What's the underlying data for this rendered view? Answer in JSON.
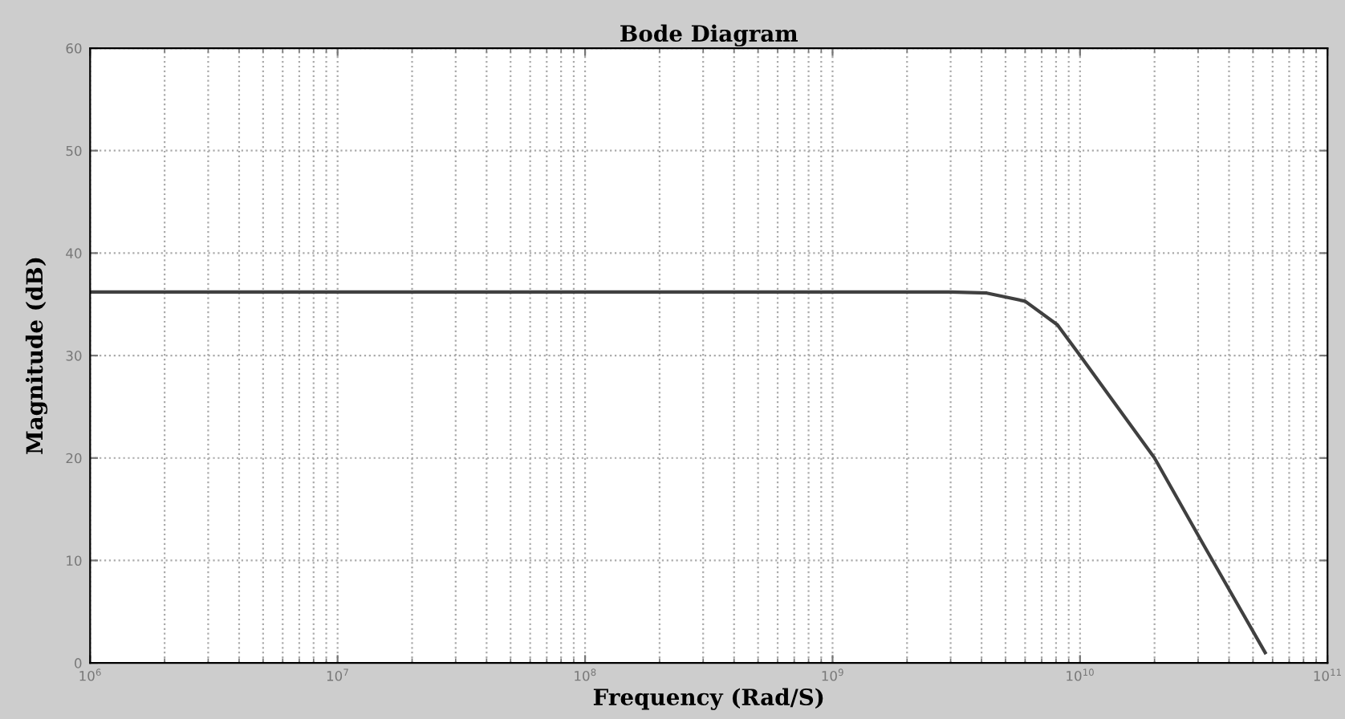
{
  "chart_data": {
    "type": "line",
    "title": "Bode Diagram",
    "xlabel": "Frequency (Rad/S)",
    "ylabel": "Magnitude (dB)",
    "log": "x",
    "xlim": [
      1000000,
      100000000000
    ],
    "ylim": [
      0,
      60
    ],
    "xticks": [
      {
        "value": 1000000,
        "label": "10$^{6}$"
      },
      {
        "value": 10000000,
        "label": "10$^{7}$"
      },
      {
        "value": 100000000,
        "label": "10$^{8}$"
      },
      {
        "value": 1000000000,
        "label": "10$^{9}$"
      },
      {
        "value": 10000000000,
        "label": "10$^{10}$"
      },
      {
        "value": 100000000000,
        "label": "10$^{11}$"
      }
    ],
    "yticks": [
      0,
      10,
      20,
      30,
      40,
      50,
      60
    ],
    "grid": true,
    "line_style": "solid",
    "marker": "none",
    "series": [
      {
        "color": "#404040",
        "x": [
          1000000,
          3000000000,
          4200000000,
          6000000000,
          8100000000,
          10000000000,
          20000000000,
          31600000000,
          56000000000
        ],
        "values": [
          36.2,
          36.2,
          36.1,
          35.3,
          33.0,
          30,
          20,
          11.5,
          1
        ]
      }
    ]
  }
}
